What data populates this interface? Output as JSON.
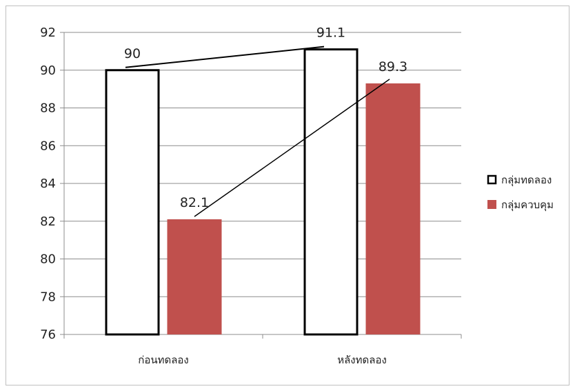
{
  "chart_data": {
    "type": "bar",
    "categories": [
      "ก่อนทดลอง",
      "หลังทดลอง"
    ],
    "series": [
      {
        "name": "กลุ่มทดลอง",
        "values": [
          90,
          91.1
        ],
        "color": "#ffffff",
        "stroke": "#000000"
      },
      {
        "name": "กลุ่มควบคุม",
        "values": [
          82.1,
          89.3
        ],
        "color": "#c0504d",
        "stroke": "#c0504d"
      }
    ],
    "data_labels": [
      "90",
      "91.1",
      "82.1",
      "89.3"
    ],
    "ylim": [
      76,
      92
    ],
    "yticks": [
      "92",
      "90",
      "88",
      "86",
      "84",
      "82",
      "80",
      "78",
      "76"
    ],
    "grid": true,
    "legend_position": "right",
    "title": "",
    "xlabel": "",
    "ylabel": ""
  }
}
